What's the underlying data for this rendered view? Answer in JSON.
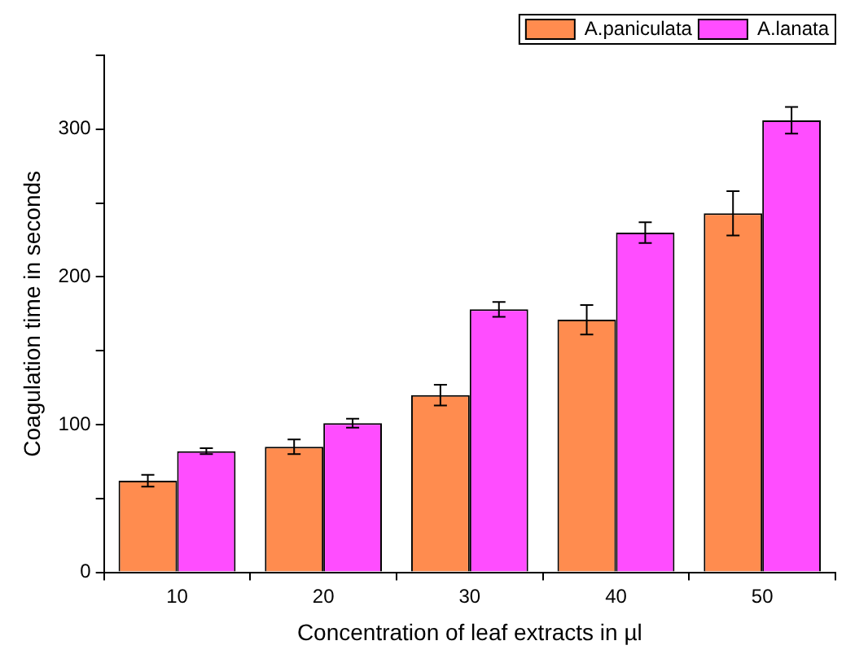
{
  "chart_data": {
    "type": "bar",
    "xlabel": "Concentration of leaf extracts in µl",
    "ylabel": "Coagulation time in seconds",
    "categories": [
      "10",
      "20",
      "30",
      "40",
      "50"
    ],
    "series": [
      {
        "name": "A.paniculata",
        "color": "#ff8c4f",
        "values": [
          62,
          85,
          120,
          171,
          243
        ],
        "errors": [
          4,
          5,
          7,
          10,
          15
        ]
      },
      {
        "name": "A.lanata",
        "color": "#ff4dff",
        "values": [
          82,
          101,
          178,
          230,
          306
        ],
        "errors": [
          2,
          3,
          5,
          7,
          9
        ]
      }
    ],
    "ylim": [
      0,
      350
    ],
    "yticks": [
      0,
      {
        "value": 50,
        "label": null
      },
      100,
      {
        "value": 150,
        "label": null
      },
      200,
      {
        "value": 250,
        "label": null
      },
      300,
      {
        "value": 350,
        "label": null
      }
    ],
    "grid": false,
    "legend": "top right"
  }
}
